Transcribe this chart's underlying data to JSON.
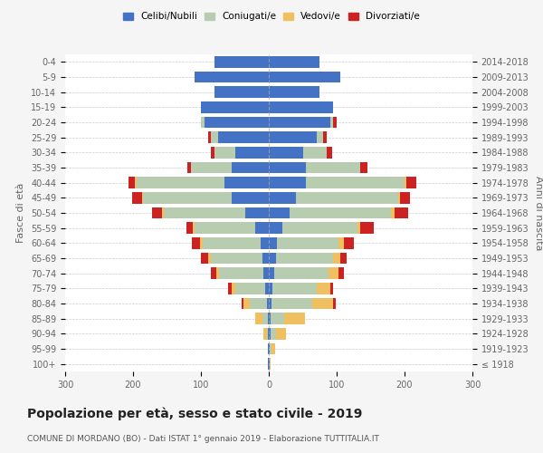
{
  "age_groups": [
    "100+",
    "95-99",
    "90-94",
    "85-89",
    "80-84",
    "75-79",
    "70-74",
    "65-69",
    "60-64",
    "55-59",
    "50-54",
    "45-49",
    "40-44",
    "35-39",
    "30-34",
    "25-29",
    "20-24",
    "15-19",
    "10-14",
    "5-9",
    "0-4"
  ],
  "birth_years": [
    "≤ 1918",
    "1919-1923",
    "1924-1928",
    "1929-1933",
    "1934-1938",
    "1939-1943",
    "1944-1948",
    "1949-1953",
    "1954-1958",
    "1959-1963",
    "1964-1968",
    "1969-1973",
    "1974-1978",
    "1979-1983",
    "1984-1988",
    "1989-1993",
    "1994-1998",
    "1999-2003",
    "2004-2008",
    "2009-2013",
    "2014-2018"
  ],
  "colors": {
    "celibi": "#4472C4",
    "coniugati": "#B8CCB0",
    "vedovi": "#F0C060",
    "divorziati": "#CC2222"
  },
  "males": {
    "celibi": [
      1,
      1,
      1,
      2,
      3,
      5,
      8,
      10,
      12,
      20,
      35,
      55,
      65,
      55,
      50,
      75,
      95,
      100,
      80,
      110,
      80
    ],
    "coniugati": [
      0,
      0,
      2,
      8,
      25,
      45,
      65,
      75,
      85,
      90,
      120,
      130,
      130,
      60,
      30,
      10,
      5,
      0,
      0,
      0,
      0
    ],
    "vedovi": [
      0,
      1,
      5,
      10,
      10,
      5,
      5,
      5,
      5,
      2,
      2,
      2,
      2,
      0,
      0,
      0,
      0,
      0,
      0,
      0,
      0
    ],
    "divorziati": [
      0,
      0,
      0,
      0,
      2,
      5,
      8,
      10,
      12,
      10,
      15,
      15,
      10,
      5,
      5,
      5,
      0,
      0,
      0,
      0,
      0
    ]
  },
  "females": {
    "celibi": [
      1,
      1,
      2,
      3,
      4,
      5,
      8,
      10,
      12,
      20,
      30,
      40,
      55,
      55,
      50,
      70,
      90,
      95,
      75,
      105,
      75
    ],
    "coniugati": [
      0,
      3,
      8,
      20,
      60,
      65,
      80,
      85,
      90,
      110,
      150,
      150,
      145,
      80,
      35,
      10,
      5,
      0,
      0,
      0,
      0
    ],
    "vedovi": [
      2,
      5,
      15,
      30,
      30,
      20,
      15,
      10,
      8,
      5,
      5,
      3,
      2,
      0,
      0,
      0,
      0,
      0,
      0,
      0,
      0
    ],
    "divorziati": [
      0,
      0,
      0,
      0,
      5,
      5,
      8,
      10,
      15,
      20,
      20,
      15,
      15,
      10,
      8,
      5,
      5,
      0,
      0,
      0,
      0
    ]
  },
  "xlim": 300,
  "title": "Popolazione per età, sesso e stato civile - 2019",
  "subtitle": "COMUNE DI MORDANO (BO) - Dati ISTAT 1° gennaio 2019 - Elaborazione TUTTITALIA.IT",
  "ylabel_left": "Fasce di età",
  "ylabel_right": "Anni di nascita",
  "bg_color": "#F5F5F5",
  "plot_bg_color": "#FFFFFF",
  "grid_color": "#CCCCCC",
  "tick_color": "#666666"
}
